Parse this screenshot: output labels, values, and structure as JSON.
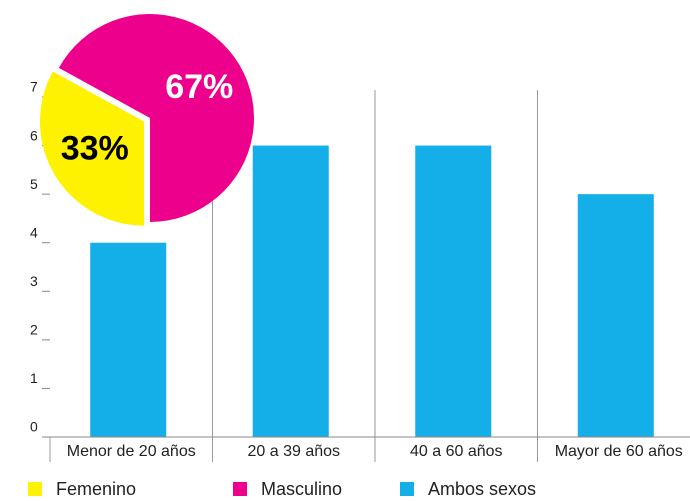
{
  "chart_data": [
    {
      "type": "bar",
      "categories": [
        "Menor de 20 años",
        "20 a 39 años",
        "40 a 60 años",
        "Mayor de 60 años"
      ],
      "series": [
        {
          "name": "Ambos sexos",
          "color": "#14aee8",
          "values": [
            4,
            6,
            6,
            5
          ]
        }
      ],
      "ylim": [
        0,
        7
      ],
      "yticks": [
        0,
        1,
        2,
        3,
        4,
        5,
        6,
        7
      ]
    },
    {
      "type": "pie",
      "categories": [
        "Femenino",
        "Masculino"
      ],
      "values": [
        33,
        67
      ],
      "value_labels": [
        "33%",
        "67%"
      ],
      "colors": [
        "#fff200",
        "#ec008c"
      ],
      "label_colors": [
        "#000000",
        "#ffffff"
      ],
      "start_angle": 180
    }
  ]
}
